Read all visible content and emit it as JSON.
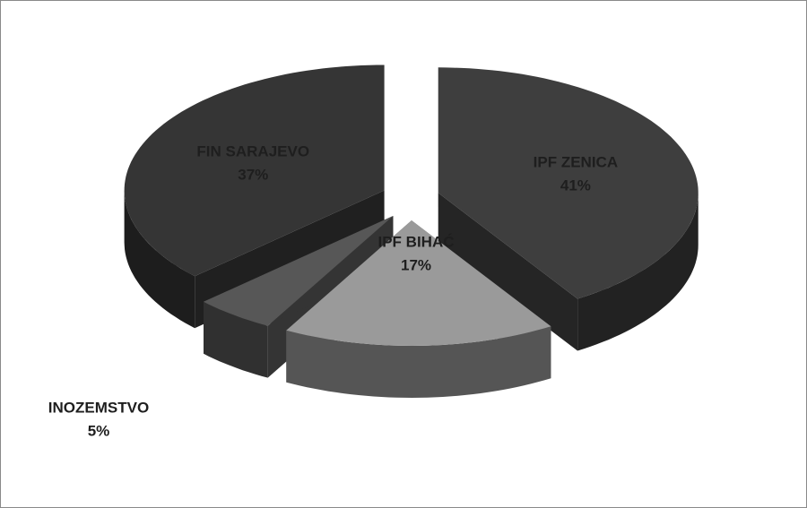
{
  "chart_data": {
    "type": "pie3d",
    "categories": [
      "IPF ZENICA",
      "IPF BIHAĆ",
      "INOZEMSTVO",
      "FIN SARAJEVO"
    ],
    "values": [
      41,
      17,
      5,
      37
    ],
    "value_labels": [
      "41%",
      "17%",
      "5%",
      "37%"
    ],
    "colors": [
      "#3e3e3e",
      "#9a9a9a",
      "#575757",
      "#353535"
    ]
  }
}
